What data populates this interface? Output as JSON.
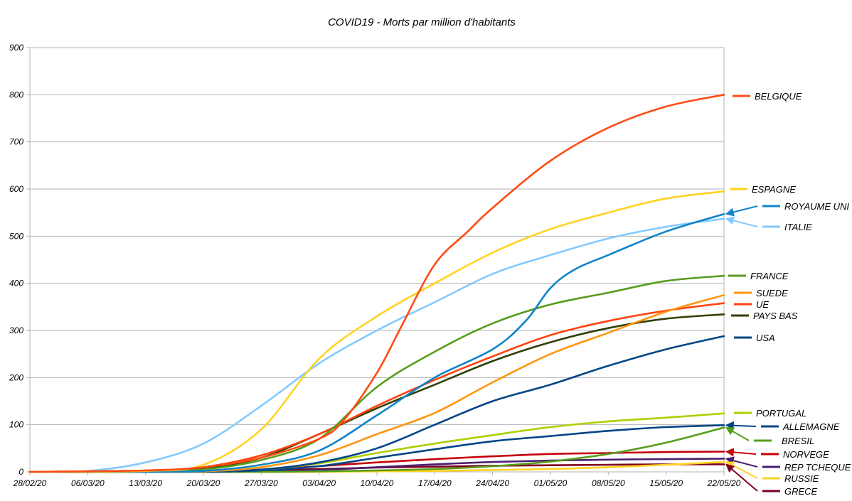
{
  "chart_data": {
    "type": "line",
    "title": "COVID19 - Morts par million d'habitants",
    "xlabel": "",
    "ylabel": "",
    "ylim": [
      0,
      900
    ],
    "yticks": [
      0,
      100,
      200,
      300,
      400,
      500,
      600,
      700,
      800,
      900
    ],
    "grid": true,
    "legend_position": "right",
    "xticks": [
      "28/02/20",
      "06/03/20",
      "13/03/20",
      "20/03/20",
      "27/03/20",
      "03/04/20",
      "10/04/20",
      "17/04/20",
      "24/04/20",
      "01/05/20",
      "08/05/20",
      "15/05/20",
      "22/05/20"
    ],
    "x_days": [
      0,
      7,
      14,
      21,
      28,
      35,
      42,
      49,
      56,
      63,
      70,
      77,
      84
    ],
    "series": [
      {
        "name": "BELGIQUE",
        "color": "#ff4b12",
        "x": [
          0,
          14,
          21,
          28,
          35,
          38,
          42,
          45,
          49,
          53,
          56,
          63,
          70,
          77,
          84
        ],
        "values": [
          0,
          3,
          10,
          30,
          70,
          110,
          210,
          310,
          440,
          510,
          560,
          660,
          730,
          775,
          800
        ]
      },
      {
        "name": "ESPAGNE",
        "color": "#ffd320",
        "x": [
          0,
          14,
          21,
          28,
          35,
          42,
          49,
          56,
          63,
          70,
          77,
          84
        ],
        "values": [
          0,
          2,
          15,
          90,
          240,
          330,
          400,
          465,
          515,
          550,
          580,
          595
        ]
      },
      {
        "name": "ROYAUME UNI",
        "color": "#0e84c9",
        "x": [
          0,
          14,
          21,
          28,
          35,
          42,
          49,
          56,
          60,
          63,
          66,
          70,
          77,
          84
        ],
        "values": [
          0,
          0,
          2,
          15,
          45,
          120,
          200,
          260,
          320,
          390,
          430,
          460,
          510,
          547
        ]
      },
      {
        "name": "ITALIE",
        "color": "#83caff",
        "x": [
          0,
          7,
          14,
          21,
          28,
          35,
          42,
          49,
          56,
          63,
          70,
          77,
          84
        ],
        "values": [
          0,
          2,
          20,
          60,
          140,
          230,
          300,
          360,
          420,
          460,
          495,
          520,
          537
        ]
      },
      {
        "name": "FRANCE",
        "color": "#579d1c",
        "x": [
          0,
          14,
          21,
          28,
          35,
          42,
          49,
          56,
          63,
          70,
          77,
          84
        ],
        "values": [
          0,
          1,
          5,
          25,
          70,
          180,
          255,
          315,
          355,
          380,
          405,
          416
        ]
      },
      {
        "name": "SUEDE",
        "color": "#ff950e",
        "x": [
          0,
          14,
          21,
          28,
          35,
          42,
          49,
          56,
          63,
          70,
          77,
          84
        ],
        "values": [
          0,
          0,
          1,
          10,
          35,
          80,
          125,
          190,
          250,
          295,
          340,
          375
        ]
      },
      {
        "name": "UE",
        "color": "#ff420e",
        "x": [
          0,
          14,
          21,
          28,
          35,
          42,
          49,
          56,
          63,
          70,
          77,
          84
        ],
        "values": [
          0,
          3,
          10,
          35,
          80,
          140,
          195,
          245,
          290,
          320,
          342,
          358
        ]
      },
      {
        "name": "PAYS BAS",
        "color": "#314004",
        "x": [
          0,
          14,
          21,
          28,
          35,
          42,
          49,
          56,
          63,
          70,
          77,
          84
        ],
        "values": [
          0,
          0,
          8,
          30,
          80,
          135,
          185,
          235,
          275,
          305,
          325,
          334
        ]
      },
      {
        "name": "USA",
        "color": "#004586",
        "x": [
          0,
          14,
          21,
          28,
          35,
          42,
          49,
          56,
          63,
          70,
          77,
          84
        ],
        "values": [
          0,
          0,
          1,
          5,
          20,
          50,
          100,
          150,
          185,
          225,
          260,
          288
        ]
      },
      {
        "name": "PORTUGAL",
        "color": "#aecf00",
        "x": [
          0,
          14,
          21,
          28,
          35,
          42,
          49,
          56,
          63,
          70,
          77,
          84
        ],
        "values": [
          0,
          0,
          1,
          5,
          18,
          40,
          60,
          78,
          95,
          107,
          115,
          124
        ]
      },
      {
        "name": "ALLEMAGNE",
        "color": "#004586",
        "x": [
          0,
          14,
          21,
          28,
          35,
          42,
          49,
          56,
          63,
          70,
          77,
          84
        ],
        "values": [
          0,
          0,
          0,
          3,
          12,
          30,
          48,
          65,
          76,
          87,
          95,
          99
        ]
      },
      {
        "name": "BRESIL",
        "color": "#579d1c",
        "x": [
          0,
          14,
          21,
          28,
          35,
          42,
          49,
          56,
          63,
          70,
          77,
          84
        ],
        "values": [
          0,
          0,
          0,
          0,
          1,
          3,
          6,
          12,
          22,
          38,
          62,
          94
        ]
      },
      {
        "name": "NORVEGE",
        "color": "#c5000b",
        "x": [
          0,
          14,
          21,
          28,
          35,
          42,
          49,
          56,
          63,
          70,
          77,
          84
        ],
        "values": [
          0,
          0,
          1,
          4,
          12,
          20,
          27,
          33,
          38,
          40,
          42,
          43
        ]
      },
      {
        "name": "REP TCHEQUE",
        "color": "#4b1f6f",
        "x": [
          0,
          14,
          21,
          28,
          35,
          42,
          49,
          56,
          63,
          70,
          77,
          84
        ],
        "values": [
          0,
          0,
          0,
          1,
          4,
          10,
          16,
          21,
          24,
          26,
          27,
          28
        ]
      },
      {
        "name": "RUSSIE",
        "color": "#ffd320",
        "x": [
          0,
          14,
          21,
          28,
          35,
          42,
          49,
          56,
          63,
          70,
          77,
          84
        ],
        "values": [
          0,
          0,
          0,
          0,
          0,
          1,
          2,
          4,
          6,
          10,
          15,
          21
        ]
      },
      {
        "name": "GRECE",
        "color": "#7e0021",
        "x": [
          0,
          14,
          21,
          28,
          35,
          42,
          49,
          56,
          63,
          70,
          77,
          84
        ],
        "values": [
          0,
          0,
          1,
          3,
          6,
          9,
          11,
          13,
          14,
          15,
          16,
          16
        ]
      }
    ]
  }
}
